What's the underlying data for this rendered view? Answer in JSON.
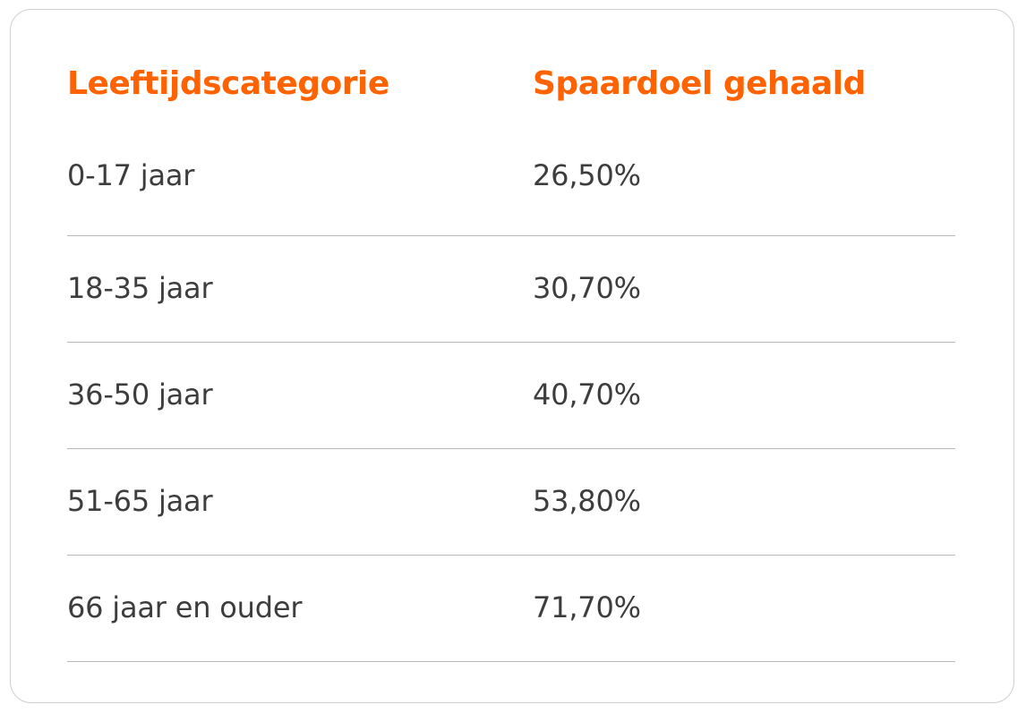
{
  "accent_color": "#ff6200",
  "text_color": "#3d3d3d",
  "table": {
    "headers": [
      "Leeftijdscategorie",
      "Spaardoel gehaald"
    ],
    "rows": [
      {
        "age": "0-17 jaar",
        "value": "26,50%"
      },
      {
        "age": "18-35 jaar",
        "value": "30,70%"
      },
      {
        "age": "36-50 jaar",
        "value": "40,70%"
      },
      {
        "age": "51-65 jaar",
        "value": "53,80%"
      },
      {
        "age": "66 jaar en ouder",
        "value": "71,70%"
      }
    ]
  }
}
